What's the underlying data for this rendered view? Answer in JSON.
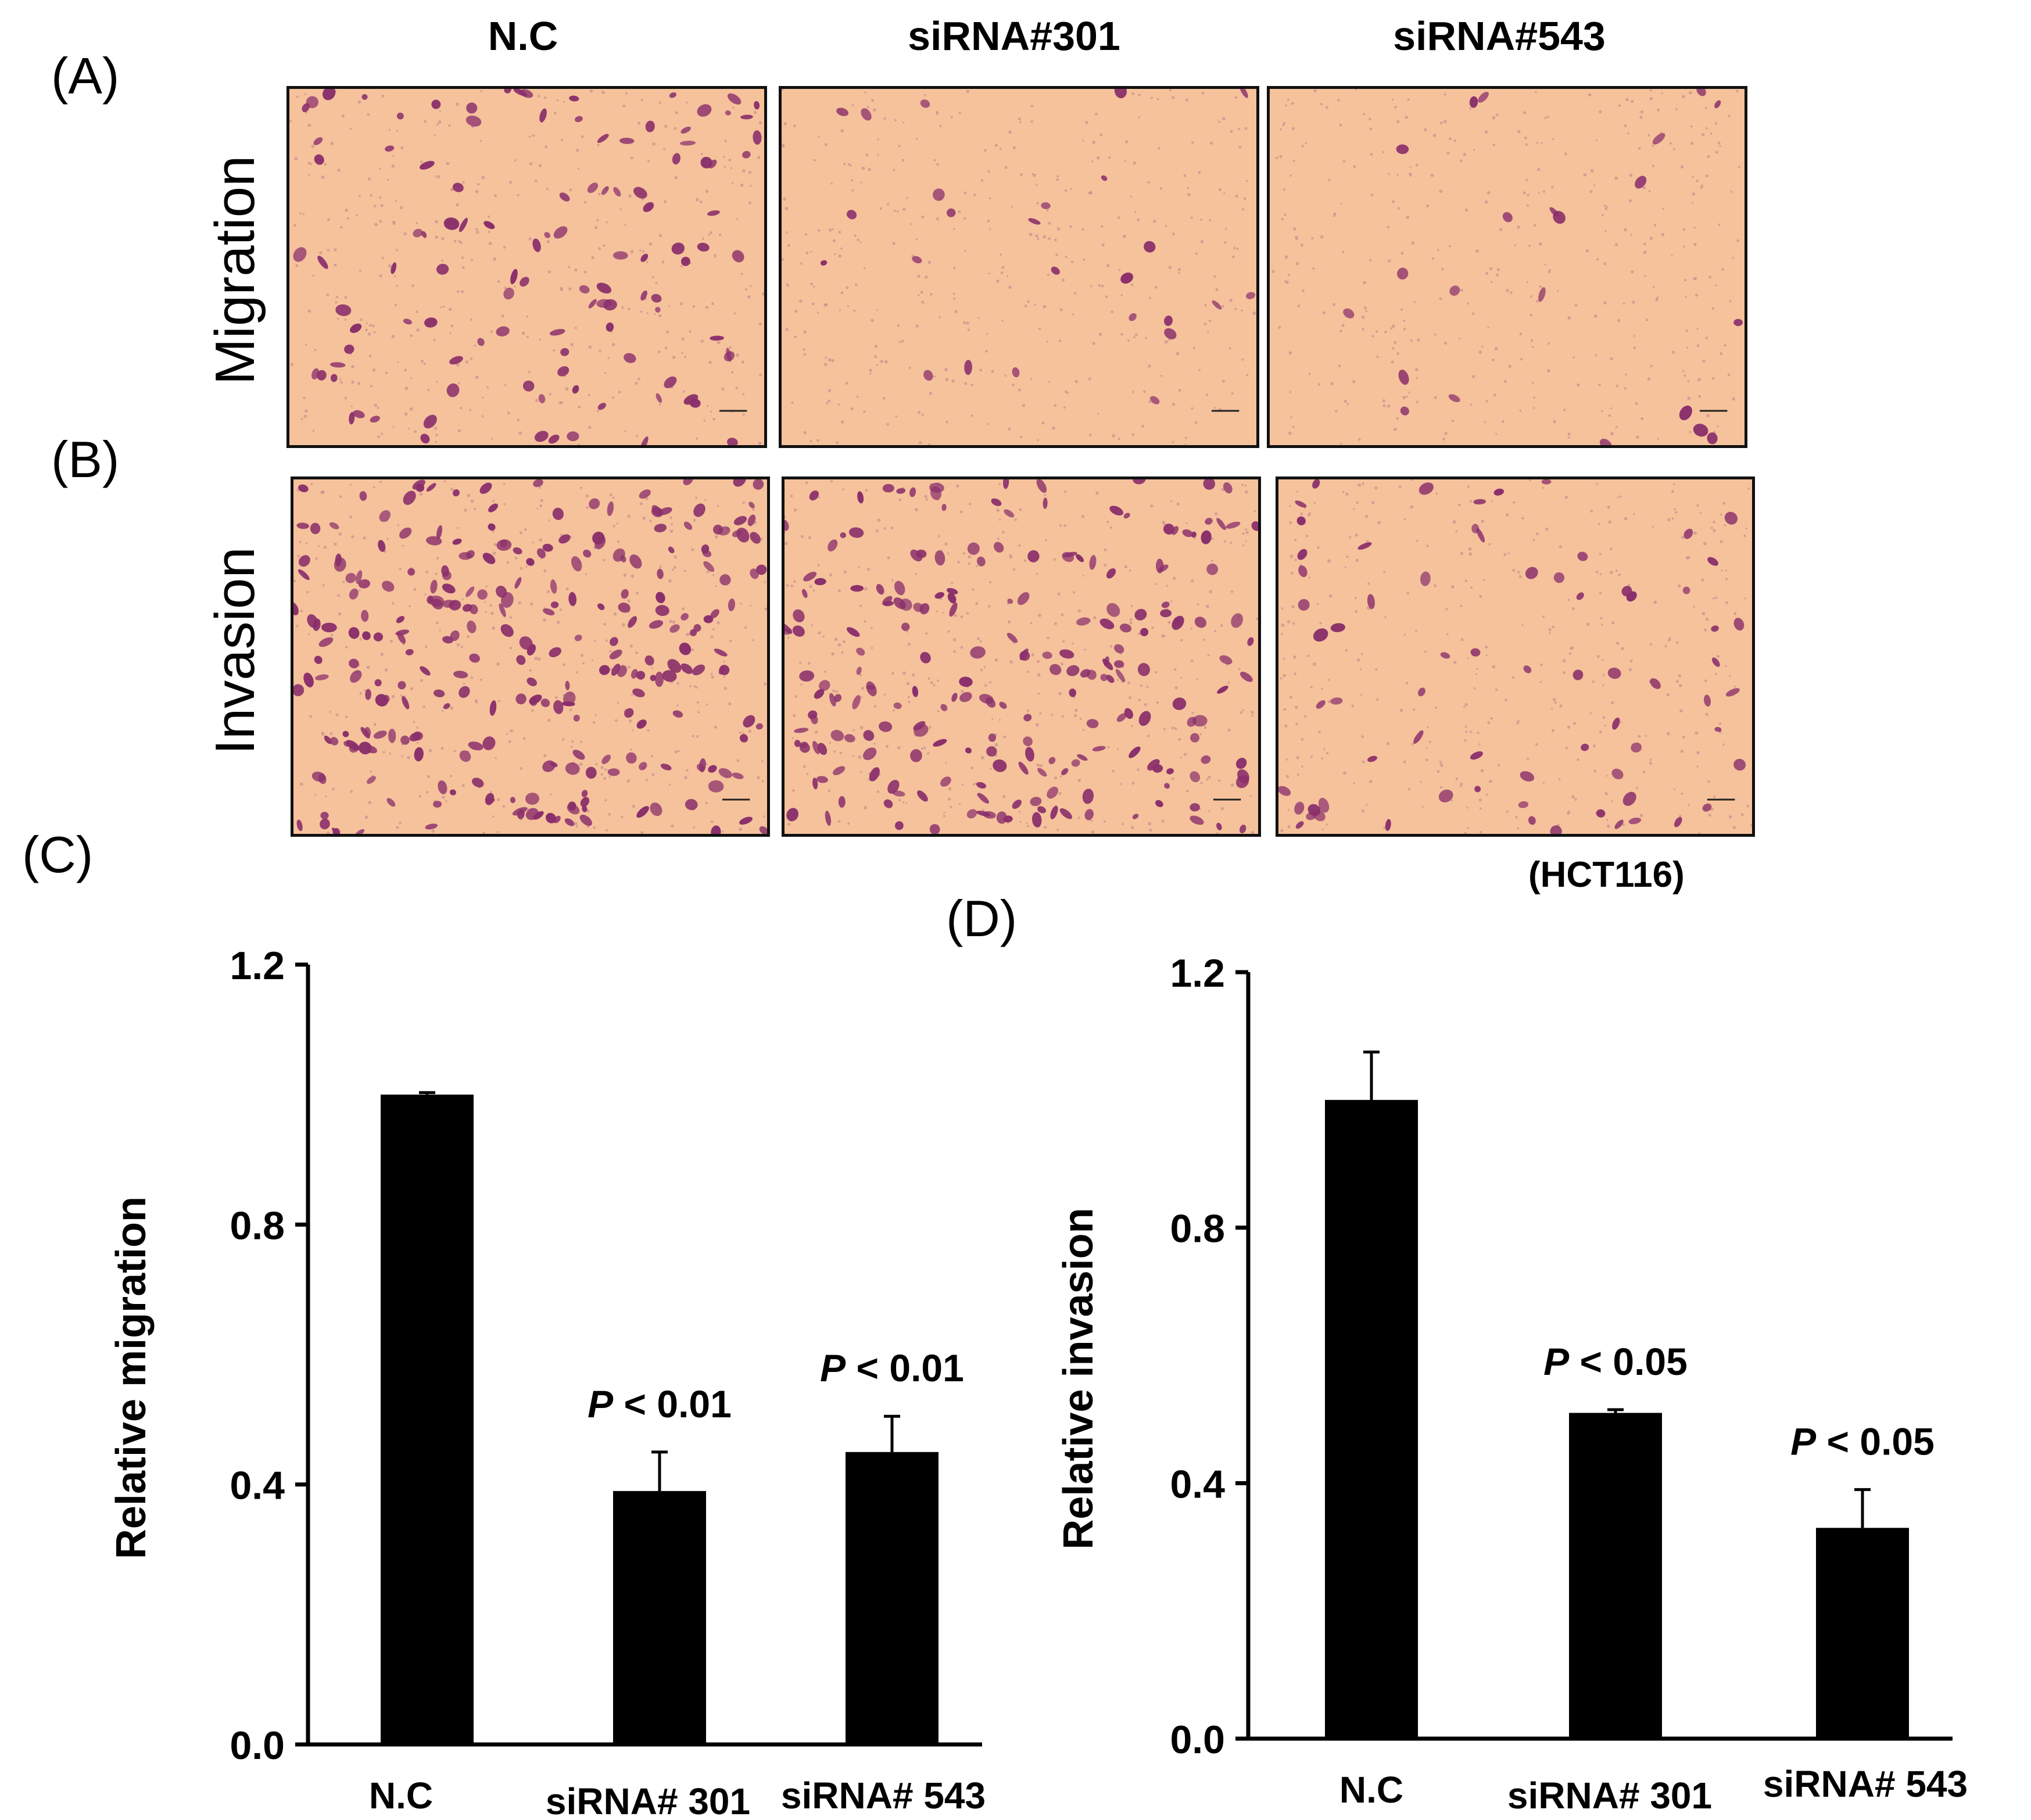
{
  "figure": {
    "panel_labels": {
      "A": "(A)",
      "B": "(B)",
      "C": "(C)",
      "D": "(D)"
    },
    "column_headers": [
      "N.C",
      "siRNA#301",
      "siRNA#543"
    ],
    "row_labels": {
      "migration": "Migration",
      "invasion": "Invasion"
    },
    "cell_line": "(HCT116)",
    "colors": {
      "background": "#f6c29c",
      "cells": "#8a2f6b",
      "bars": "#000000"
    }
  },
  "chart_data": [
    {
      "type": "bar",
      "panel": "C",
      "title": "",
      "xlabel": "",
      "ylabel": "Relative migration",
      "ylim": [
        0,
        1.2
      ],
      "yticks": [
        "0.0",
        "0.4",
        "0.8",
        "1.2"
      ],
      "categories": [
        "N.C",
        "siRNA# 301",
        "siRNA# 543"
      ],
      "values": [
        1.0,
        0.39,
        0.45
      ],
      "errors": [
        0.003,
        0.06,
        0.055
      ],
      "annotations": [
        "",
        "P < 0.01",
        "P < 0.01"
      ]
    },
    {
      "type": "bar",
      "panel": "D",
      "title": "",
      "xlabel": "",
      "ylabel": "Relative invasion",
      "ylim": [
        0,
        1.2
      ],
      "yticks": [
        "0.0",
        "0.4",
        "0.8",
        "1.2"
      ],
      "categories": [
        "N.C",
        "siRNA# 301",
        "siRNA# 543"
      ],
      "values": [
        1.0,
        0.51,
        0.33
      ],
      "errors": [
        0.075,
        0.005,
        0.06
      ],
      "annotations": [
        "",
        "P < 0.05",
        "P < 0.05"
      ]
    }
  ]
}
